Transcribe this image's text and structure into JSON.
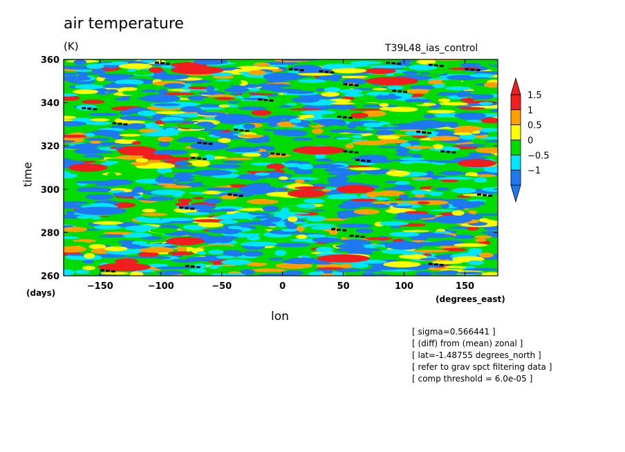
{
  "title": "air temperature",
  "units": "(K)",
  "run_name": "T39L48_ias_control",
  "notes": [
    "[ sigma=0.566441 ]",
    "[ (diff) from (mean) zonal ]",
    "[ lat=-1.48755 degrees_north ]",
    "[ refer to grav spct filtering data ]",
    "[ comp threshold = 6.0e-05 ]"
  ],
  "chart_data": {
    "type": "heatmap",
    "title": "air temperature",
    "units": "(K)",
    "xlabel": "lon",
    "xunit": "(degrees_east)",
    "ylabel": "time",
    "yunit": "(days)",
    "xlim": [
      -180,
      177
    ],
    "ylim": [
      260,
      360
    ],
    "xticks": [
      -150,
      -100,
      -50,
      0,
      50,
      100,
      150
    ],
    "yticks": [
      260,
      280,
      300,
      320,
      340,
      360
    ],
    "grid": false,
    "colorbar": {
      "placement": "right",
      "levels": [
        -1,
        -0.5,
        0,
        0.5,
        1,
        1.5
      ],
      "level_labels": [
        "−1",
        "−0.5",
        "0",
        "0.5",
        "1",
        "1.5"
      ],
      "colors": [
        "#1e78f0",
        "#00e6ff",
        "#00dc00",
        "#ffff00",
        "#ffa000",
        "#f01e1e"
      ],
      "below_color": "#1e78f0",
      "above_color": "#f01e1e",
      "extend": "both"
    },
    "patches": [
      {
        "lon": -120,
        "t": 318,
        "level": 5
      },
      {
        "lon": -60,
        "t": 320,
        "level": 0
      },
      {
        "lon": -40,
        "t": 333,
        "level": 0
      },
      {
        "lon": 30,
        "t": 318,
        "level": 5
      },
      {
        "lon": 60,
        "t": 300,
        "level": 5
      },
      {
        "lon": 20,
        "t": 298,
        "level": 5
      },
      {
        "lon": -80,
        "t": 276,
        "level": 5
      },
      {
        "lon": 120,
        "t": 330,
        "level": 0
      },
      {
        "lon": 140,
        "t": 286,
        "level": 0
      },
      {
        "lon": -150,
        "t": 290,
        "level": 0
      },
      {
        "lon": -160,
        "t": 310,
        "level": 5
      },
      {
        "lon": 90,
        "t": 350,
        "level": 5
      },
      {
        "lon": -100,
        "t": 342,
        "level": 0
      },
      {
        "lon": 50,
        "t": 268,
        "level": 5
      },
      {
        "lon": -20,
        "t": 300,
        "level": 0
      },
      {
        "lon": 160,
        "t": 312,
        "level": 5
      },
      {
        "lon": -130,
        "t": 264,
        "level": 5
      },
      {
        "lon": 100,
        "t": 274,
        "level": 0
      },
      {
        "lon": 0,
        "t": 352,
        "level": 0
      },
      {
        "lon": -70,
        "t": 355,
        "level": 5
      }
    ],
    "markers": [
      {
        "lon": -165,
        "t": 338
      },
      {
        "lon": -140,
        "t": 331
      },
      {
        "lon": -70,
        "t": 322
      },
      {
        "lon": -40,
        "t": 328
      },
      {
        "lon": -20,
        "t": 342
      },
      {
        "lon": 5,
        "t": 356
      },
      {
        "lon": 30,
        "t": 355
      },
      {
        "lon": 50,
        "t": 349
      },
      {
        "lon": 45,
        "t": 334
      },
      {
        "lon": 50,
        "t": 318
      },
      {
        "lon": 60,
        "t": 314
      },
      {
        "lon": 90,
        "t": 346
      },
      {
        "lon": 110,
        "t": 327
      },
      {
        "lon": 130,
        "t": 318
      },
      {
        "lon": 150,
        "t": 356
      },
      {
        "lon": 120,
        "t": 358
      },
      {
        "lon": 160,
        "t": 298
      },
      {
        "lon": -45,
        "t": 298
      },
      {
        "lon": -75,
        "t": 315
      },
      {
        "lon": -85,
        "t": 292
      },
      {
        "lon": 40,
        "t": 282
      },
      {
        "lon": 55,
        "t": 279
      },
      {
        "lon": -80,
        "t": 265
      },
      {
        "lon": -150,
        "t": 263
      },
      {
        "lon": 120,
        "t": 266
      },
      {
        "lon": -10,
        "t": 317
      },
      {
        "lon": -105,
        "t": 359
      },
      {
        "lon": 85,
        "t": 359
      }
    ]
  }
}
